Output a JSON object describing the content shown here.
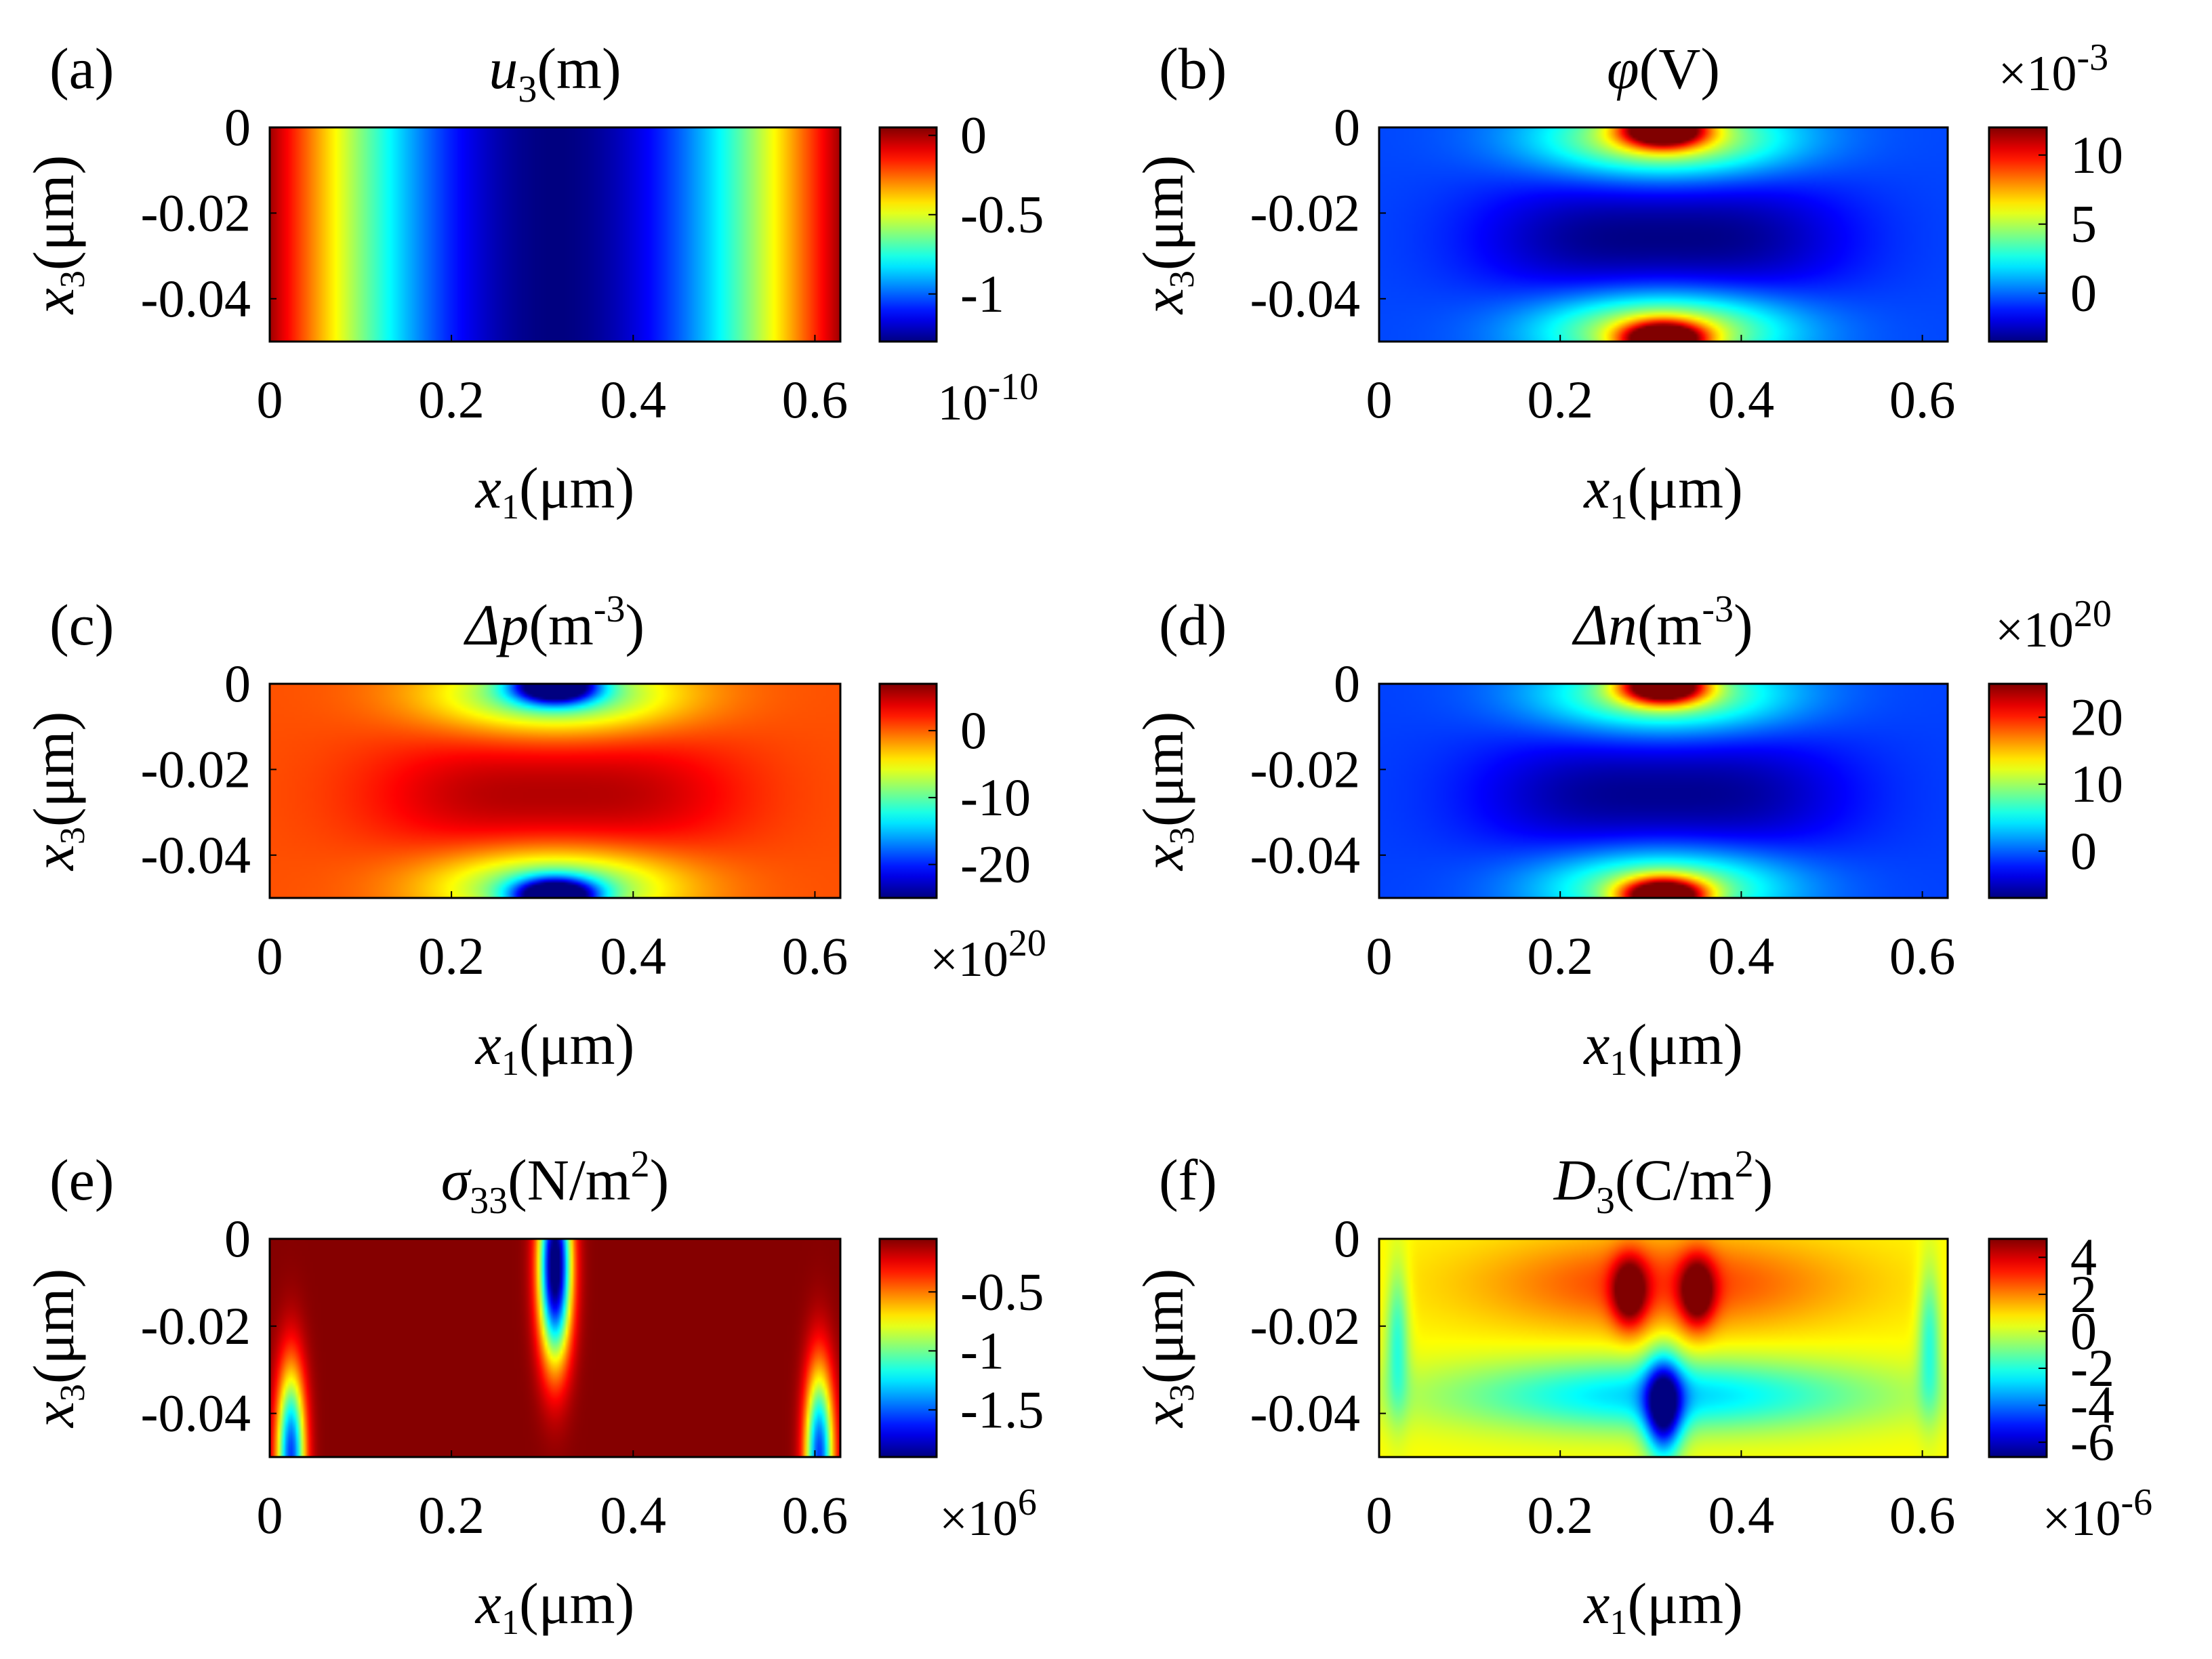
{
  "colormap": "jet",
  "colors": {
    "jet": [
      "#00008f",
      "#0000ff",
      "#00ffff",
      "#ffff00",
      "#ff0000",
      "#800000"
    ],
    "background": "#ffffff",
    "axes_frame": "#000000"
  },
  "chart_data": [
    {
      "type": "heatmap",
      "panel_label": "(a)",
      "title": {
        "main": "u",
        "sub": "3",
        "sup": "",
        "after": "(m)"
      },
      "xlabel": {
        "main": "x",
        "sub": "1",
        "after": "(μm)"
      },
      "ylabel": {
        "main": "x",
        "sub": "3",
        "after": "(μm)"
      },
      "xlim": [
        0,
        0.628
      ],
      "ylim": [
        -0.05,
        0
      ],
      "x_ticks": [
        "0",
        "0.2",
        "0.4",
        "0.6"
      ],
      "x_tick_values": [
        0,
        0.2,
        0.4,
        0.6
      ],
      "y_ticks": [
        "0",
        "-0.02",
        "-0.04"
      ],
      "y_tick_values": [
        0,
        -0.02,
        -0.04
      ],
      "colorbar": {
        "ticks": [
          "0",
          "-0.5",
          "-1"
        ],
        "values": [
          0,
          -0.5,
          -1
        ],
        "range": [
          -1.3,
          0.05
        ],
        "exponent": {
          "base": "10",
          "power": "-10"
        }
      },
      "field": "u3",
      "notes": "Vertical bands: 0 at left/right edges, minimum about -1.3e-10 m at x1 = 0.314 um"
    },
    {
      "type": "heatmap",
      "panel_label": "(b)",
      "title": {
        "main": "φ",
        "sub": "",
        "sup": "",
        "after": "(V)"
      },
      "xlabel": {
        "main": "x",
        "sub": "1",
        "after": "(μm)"
      },
      "ylabel": {
        "main": "x",
        "sub": "3",
        "after": "(μm)"
      },
      "xlim": [
        0,
        0.628
      ],
      "ylim": [
        -0.05,
        0
      ],
      "x_ticks": [
        "0",
        "0.2",
        "0.4",
        "0.6"
      ],
      "x_tick_values": [
        0,
        0.2,
        0.4,
        0.6
      ],
      "y_ticks": [
        "0",
        "-0.02",
        "-0.04"
      ],
      "y_tick_values": [
        0,
        -0.02,
        -0.04
      ],
      "colorbar": {
        "ticks": [
          "10",
          "5",
          "0"
        ],
        "values": [
          10,
          5,
          0
        ],
        "range": [
          -3.5,
          12
        ],
        "exponent": {
          "base": "×10",
          "power": "-3"
        }
      },
      "field": "phi",
      "notes": "Hot spots at top and bottom edges near x1 = 0.314 um; minimum lobes at depth -0.025 um"
    },
    {
      "type": "heatmap",
      "panel_label": "(c)",
      "title": {
        "main": "Δp",
        "sub": "",
        "sup": "-3",
        "after": "(m",
        "close": ")"
      },
      "xlabel": {
        "main": "x",
        "sub": "1",
        "after": "(μm)"
      },
      "ylabel": {
        "main": "x",
        "sub": "3",
        "after": "(μm)"
      },
      "xlim": [
        0,
        0.628
      ],
      "ylim": [
        -0.05,
        0
      ],
      "x_ticks": [
        "0",
        "0.2",
        "0.4",
        "0.6"
      ],
      "x_tick_values": [
        0,
        0.2,
        0.4,
        0.6
      ],
      "y_ticks": [
        "0",
        "-0.02",
        "-0.04"
      ],
      "y_tick_values": [
        0,
        -0.02,
        -0.04
      ],
      "colorbar": {
        "ticks": [
          "0",
          "-10",
          "-20"
        ],
        "values": [
          0,
          -10,
          -20
        ],
        "range": [
          -25,
          7
        ],
        "exponent": {
          "base": "×10",
          "power": "20"
        }
      },
      "field": "dp",
      "notes": "Mostly positive; strong negative spots at top and bottom edges near center"
    },
    {
      "type": "heatmap",
      "panel_label": "(d)",
      "title": {
        "main": "Δn",
        "sub": "",
        "sup": "-3",
        "after": "(m",
        "close": ")"
      },
      "xlabel": {
        "main": "x",
        "sub": "1",
        "after": "(μm)"
      },
      "ylabel": {
        "main": "x",
        "sub": "3",
        "after": "(μm)"
      },
      "xlim": [
        0,
        0.628
      ],
      "ylim": [
        -0.05,
        0
      ],
      "x_ticks": [
        "0",
        "0.2",
        "0.4",
        "0.6"
      ],
      "x_tick_values": [
        0,
        0.2,
        0.4,
        0.6
      ],
      "y_ticks": [
        "0",
        "-0.02",
        "-0.04"
      ],
      "y_tick_values": [
        0,
        -0.02,
        -0.04
      ],
      "colorbar": {
        "ticks": [
          "20",
          "10",
          "0"
        ],
        "values": [
          20,
          10,
          0
        ],
        "range": [
          -7,
          25
        ],
        "exponent": {
          "base": "×10",
          "power": "20"
        }
      },
      "field": "dn",
      "notes": "Mirror of Δp: hot spots at top and bottom edges near center"
    },
    {
      "type": "heatmap",
      "panel_label": "(e)",
      "title": {
        "main": "σ",
        "sub": "33",
        "sup": "2",
        "after": "(N/m",
        "close": ")"
      },
      "xlabel": {
        "main": "x",
        "sub": "1",
        "after": "(μm)"
      },
      "ylabel": {
        "main": "x",
        "sub": "3",
        "after": "(μm)"
      },
      "xlim": [
        0,
        0.628
      ],
      "ylim": [
        -0.05,
        0
      ],
      "x_ticks": [
        "0",
        "0.2",
        "0.4",
        "0.6"
      ],
      "x_tick_values": [
        0,
        0.2,
        0.4,
        0.6
      ],
      "y_ticks": [
        "0",
        "-0.02",
        "-0.04"
      ],
      "y_tick_values": [
        0,
        -0.02,
        -0.04
      ],
      "colorbar": {
        "ticks": [
          "-0.5",
          "-1",
          "-1.5"
        ],
        "values": [
          -0.5,
          -1,
          -1.5
        ],
        "range": [
          -1.9,
          -0.05
        ],
        "exponent": {
          "base": "×10",
          "power": "6"
        }
      },
      "field": "s33",
      "notes": "Nearly uniform maximum; narrow vertical negative plume from the top at x1 = 0.314 um and small plumes at the bottom corners"
    },
    {
      "type": "heatmap",
      "panel_label": "(f)",
      "title": {
        "main": "D",
        "sub": "3",
        "sup": "2",
        "after": "(C/m",
        "close": ")"
      },
      "xlabel": {
        "main": "x",
        "sub": "1",
        "after": "(μm)"
      },
      "ylabel": {
        "main": "x",
        "sub": "3",
        "after": "(μm)"
      },
      "xlim": [
        0,
        0.628
      ],
      "ylim": [
        -0.05,
        0
      ],
      "x_ticks": [
        "0",
        "0.2",
        "0.4",
        "0.6"
      ],
      "x_tick_values": [
        0,
        0.2,
        0.4,
        0.6
      ],
      "y_ticks": [
        "0",
        "-0.02",
        "-0.04"
      ],
      "y_tick_values": [
        0,
        -0.02,
        -0.04
      ],
      "colorbar": {
        "ticks": [
          "4",
          "2",
          "0",
          "-2",
          "-4",
          "-6"
        ],
        "values": [
          4,
          2,
          0,
          -2,
          -4,
          -6
        ],
        "range": [
          -6.8,
          5
        ],
        "exponent": {
          "base": "×10",
          "power": "-6"
        }
      },
      "field": "d3",
      "notes": "Positive band in the upper half, two strong maxima beside center near the top, negative plume in the lower center"
    }
  ]
}
